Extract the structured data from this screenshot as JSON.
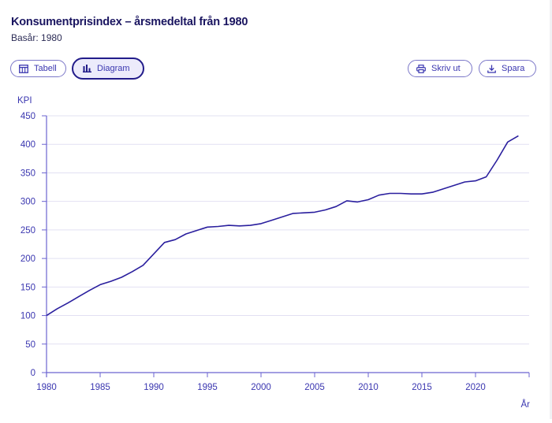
{
  "header": {
    "title": "Konsumentprisindex – årsmedeltal från 1980",
    "subtitle": "Basår: 1980"
  },
  "view_toggle": {
    "table_label": "Tabell",
    "table_icon": "table-icon",
    "chart_label": "Diagram",
    "chart_icon": "bar-chart-icon",
    "active": "Diagram"
  },
  "actions": {
    "print_label": "Skriv ut",
    "print_icon": "printer-icon",
    "save_label": "Spara",
    "save_icon": "download-icon"
  },
  "colors": {
    "line": "#2a1f9e",
    "axis": "#6b63d0",
    "grid": "#e2e0f2",
    "text": "#3a36b0",
    "title": "#1a1560"
  },
  "chart_data": {
    "type": "line",
    "title": "Konsumentprisindex – årsmedeltal från 1980",
    "subtitle": "Basår: 1980",
    "xlabel": "År",
    "ylabel": "KPI",
    "xlim": [
      1980,
      2025
    ],
    "ylim": [
      0,
      450
    ],
    "x_ticks": [
      1980,
      1985,
      1990,
      1995,
      2000,
      2005,
      2010,
      2015,
      2020
    ],
    "y_ticks": [
      0,
      50,
      100,
      150,
      200,
      250,
      300,
      350,
      400,
      450
    ],
    "grid": {
      "horizontal": true,
      "vertical": false
    },
    "legend": null,
    "series": [
      {
        "name": "KPI",
        "x": [
          1980,
          1981,
          1982,
          1983,
          1984,
          1985,
          1986,
          1987,
          1988,
          1989,
          1990,
          1991,
          1992,
          1993,
          1994,
          1995,
          1996,
          1997,
          1998,
          1999,
          2000,
          2001,
          2002,
          2003,
          2004,
          2005,
          2006,
          2007,
          2008,
          2009,
          2010,
          2011,
          2012,
          2013,
          2014,
          2015,
          2016,
          2017,
          2018,
          2019,
          2020,
          2021,
          2022,
          2023,
          2024
        ],
        "values": [
          100,
          112,
          122,
          133,
          144,
          154,
          160,
          167,
          177,
          188,
          208,
          228,
          233,
          243,
          249,
          255,
          256,
          258,
          257,
          258,
          261,
          267,
          273,
          279,
          280,
          281,
          285,
          291,
          301,
          299,
          303,
          311,
          314,
          314,
          313,
          313,
          316,
          322,
          328,
          334,
          336,
          343,
          372,
          404,
          415
        ]
      }
    ]
  }
}
